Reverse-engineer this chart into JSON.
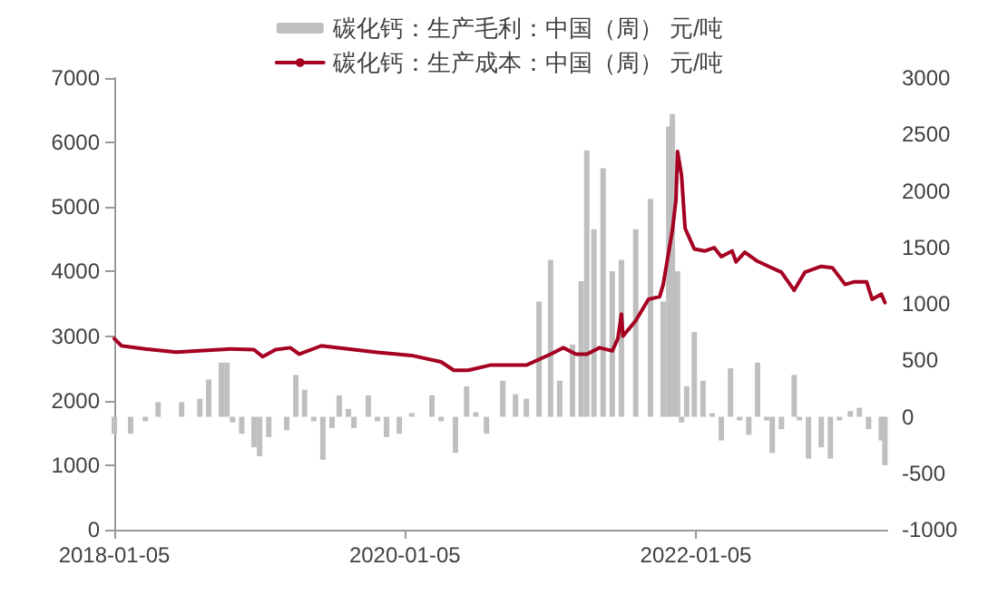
{
  "chart_data": {
    "type": "bar",
    "legend": "top",
    "xlim": [
      "2018-01-05",
      "2023-05-01"
    ],
    "xticks": [
      "2018-01-05",
      "2020-01-05",
      "2022-01-05"
    ],
    "ylim": [
      0,
      7000
    ],
    "yticks": [
      0,
      1000,
      2000,
      3000,
      4000,
      5000,
      6000,
      7000
    ],
    "y2lim": [
      -1000,
      3000
    ],
    "y2ticks": [
      -1000,
      -500,
      0,
      500,
      1000,
      1500,
      2000,
      2500,
      3000
    ],
    "series": [
      {
        "name": "碳化钙：生产毛利：中国（周） 元/吨",
        "axis": "y2",
        "color": "#bfbfbf",
        "x": [
          "2018-01-05",
          "2018-02-15",
          "2018-03-24",
          "2018-04-25",
          "2018-06-23",
          "2018-08-08",
          "2018-08-30",
          "2018-10-01",
          "2018-10-15",
          "2018-10-29",
          "2018-11-21",
          "2018-12-22",
          "2019-01-05",
          "2019-01-28",
          "2019-03-14",
          "2019-04-06",
          "2019-04-28",
          "2019-05-21",
          "2019-06-13",
          "2019-07-06",
          "2019-07-24",
          "2019-08-16",
          "2019-08-30",
          "2019-10-05",
          "2019-10-28",
          "2019-11-20",
          "2019-12-22",
          "2020-01-22",
          "2020-03-13",
          "2020-04-05",
          "2020-05-11",
          "2020-06-08",
          "2020-07-01",
          "2020-07-28",
          "2020-09-07",
          "2020-10-09",
          "2020-11-05",
          "2020-12-07",
          "2021-01-05",
          "2021-01-28",
          "2021-03-01",
          "2021-03-23",
          "2021-04-06",
          "2021-04-24",
          "2021-05-17",
          "2021-06-09",
          "2021-07-02",
          "2021-08-07",
          "2021-09-13",
          "2021-10-15",
          "2021-10-29",
          "2021-11-07",
          "2021-11-20",
          "2021-11-30",
          "2021-12-13",
          "2022-01-01",
          "2022-01-23",
          "2022-02-15",
          "2022-03-10",
          "2022-04-02",
          "2022-04-25",
          "2022-05-18",
          "2022-06-09",
          "2022-07-02",
          "2022-07-16",
          "2022-08-08",
          "2022-09-09",
          "2022-09-22",
          "2022-10-15",
          "2022-11-16",
          "2022-12-09",
          "2023-01-01",
          "2023-01-28",
          "2023-02-20",
          "2023-03-15",
          "2023-04-16",
          "2023-04-25"
        ],
        "values": [
          -150,
          -150,
          -40,
          130,
          130,
          160,
          330,
          480,
          480,
          -50,
          -150,
          -270,
          -350,
          -180,
          -120,
          370,
          240,
          -40,
          -380,
          -100,
          190,
          70,
          -100,
          190,
          -40,
          -180,
          -150,
          20,
          190,
          -40,
          -320,
          270,
          40,
          -150,
          320,
          200,
          160,
          1020,
          1390,
          320,
          640,
          1200,
          2360,
          1660,
          2200,
          1290,
          1390,
          1660,
          1930,
          1020,
          2570,
          2680,
          1290,
          -50,
          270,
          750,
          320,
          20,
          -210,
          430,
          -20,
          -160,
          480,
          -20,
          -320,
          -110,
          370,
          -20,
          -370,
          -270,
          -370,
          -30,
          50,
          80,
          -110,
          -210,
          -430
        ]
      },
      {
        "name": "碳化钙：生产成本：中国（周） 元/吨",
        "type": "line",
        "color": "#a50021",
        "x": [
          "2018-01-05",
          "2018-01-23",
          "2018-03-24",
          "2018-06-09",
          "2018-10-24",
          "2018-12-22",
          "2019-01-13",
          "2019-02-14",
          "2019-03-23",
          "2019-04-15",
          "2019-06-09",
          "2019-10-23",
          "2020-01-22",
          "2020-04-05",
          "2020-05-07",
          "2020-06-12",
          "2020-08-06",
          "2020-11-05",
          "2021-01-05",
          "2021-02-06",
          "2021-03-10",
          "2021-04-06",
          "2021-05-08",
          "2021-06-09",
          "2021-06-23",
          "2021-07-02",
          "2021-07-06",
          "2021-08-07",
          "2021-09-08",
          "2021-10-06",
          "2021-10-15",
          "2021-11-07",
          "2021-11-16",
          "2021-11-20",
          "2021-11-30",
          "2021-12-09",
          "2022-01-01",
          "2022-01-28",
          "2022-02-20",
          "2022-03-10",
          "2022-04-06",
          "2022-04-16",
          "2022-05-08",
          "2022-06-09",
          "2022-07-07",
          "2022-08-08",
          "2022-09-09",
          "2022-10-06",
          "2022-11-16",
          "2022-12-14",
          "2023-01-15",
          "2023-02-06",
          "2023-03-10",
          "2023-03-24",
          "2023-04-16",
          "2023-04-25"
        ],
        "values": [
          2960,
          2850,
          2800,
          2750,
          2800,
          2790,
          2680,
          2790,
          2820,
          2720,
          2850,
          2750,
          2700,
          2600,
          2470,
          2470,
          2550,
          2550,
          2720,
          2820,
          2720,
          2720,
          2820,
          2770,
          2960,
          3340,
          3000,
          3240,
          3570,
          3610,
          3800,
          4640,
          5110,
          5860,
          5490,
          4670,
          4350,
          4320,
          4370,
          4230,
          4320,
          4150,
          4300,
          4160,
          4080,
          3990,
          3710,
          3990,
          4080,
          4060,
          3800,
          3840,
          3840,
          3570,
          3650,
          3520
        ]
      }
    ]
  }
}
